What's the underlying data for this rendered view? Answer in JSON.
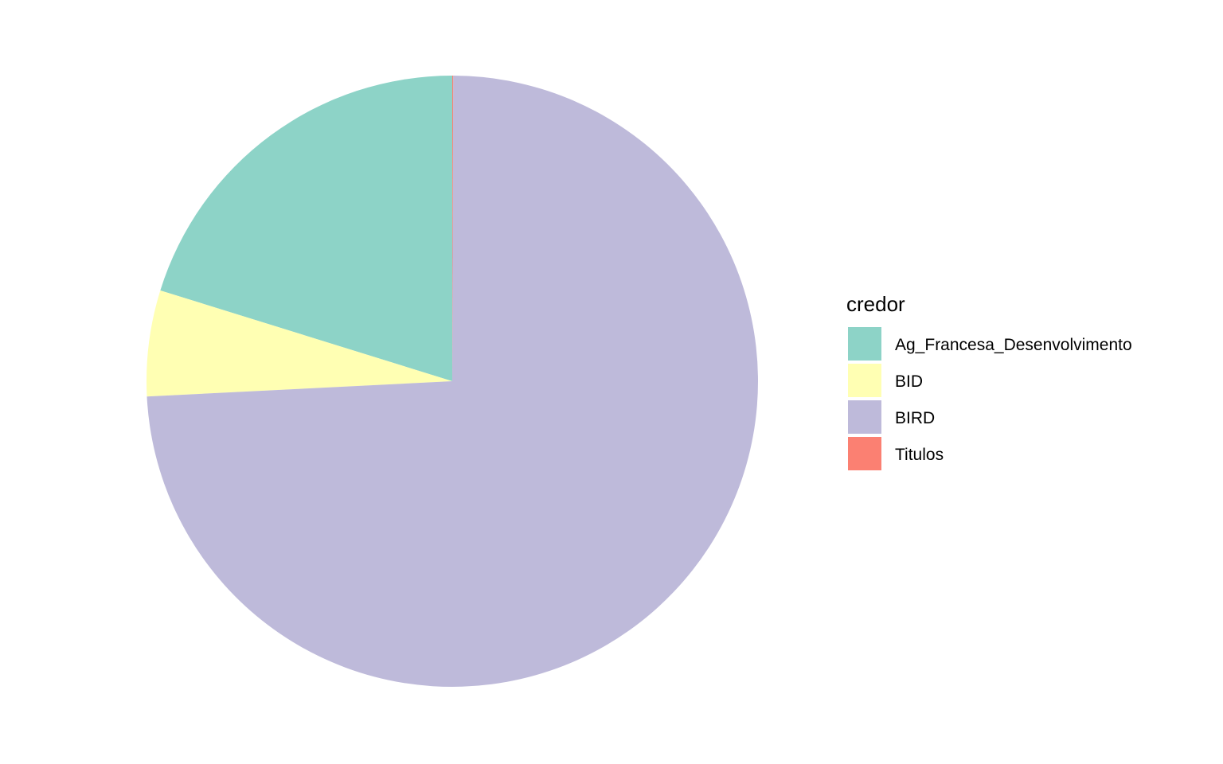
{
  "chart_data": {
    "type": "pie",
    "legend_title": "credor",
    "legend_position": "right",
    "start": "12 o'clock",
    "direction": "counterclockwise",
    "slices": [
      {
        "label": "Ag_Francesa_Desenvolvimento",
        "percent": 20.2,
        "color": "#8DD3C7"
      },
      {
        "label": "BID",
        "percent": 5.6,
        "color": "#FFFFB3"
      },
      {
        "label": "BIRD",
        "percent": 74.15,
        "color": "#BEBADA"
      },
      {
        "label": "Titulos",
        "percent": 0.05,
        "color": "#FB8072"
      }
    ]
  }
}
